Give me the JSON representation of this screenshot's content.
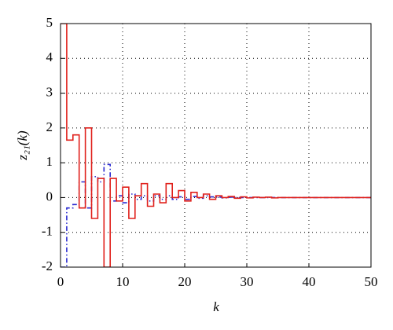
{
  "chart_data": {
    "type": "line",
    "drawstyle": "steps-post",
    "xlabel": "k",
    "ylabel": "z₂₁(k)",
    "x": [
      0,
      1,
      2,
      3,
      4,
      5,
      6,
      7,
      8,
      9,
      10,
      11,
      12,
      13,
      14,
      15,
      16,
      17,
      18,
      19,
      20,
      21,
      22,
      23,
      24,
      25,
      26,
      27,
      28,
      29,
      30,
      31,
      32,
      33,
      34,
      35,
      36,
      37,
      38,
      39,
      40,
      41,
      42,
      43,
      44,
      45,
      46,
      47,
      48,
      49,
      50
    ],
    "series": [
      {
        "color": "#2a2ad0",
        "dash": "6 3 1.5 3",
        "values": [
          -2,
          -0.3,
          -0.2,
          0.45,
          -0.3,
          0.6,
          0.45,
          0.95,
          -0.1,
          0.05,
          -0.15,
          0.1,
          -0.05,
          0.05,
          -0.1,
          0.05,
          -0.05,
          0.05,
          -0.05,
          0.02,
          -0.05,
          0.03,
          -0.02,
          0.05,
          0.02,
          0.01,
          -0.01,
          0.01,
          0,
          0,
          0,
          0,
          0,
          0,
          0,
          0,
          0,
          0,
          0,
          0,
          0,
          0,
          0,
          0,
          0,
          0,
          0,
          0,
          0,
          0,
          0
        ]
      },
      {
        "color": "#e0201b",
        "dash": "none",
        "values": [
          5,
          1.65,
          1.8,
          -0.3,
          2.0,
          -0.6,
          0.55,
          -2.0,
          0.55,
          -0.1,
          0.3,
          -0.6,
          0.05,
          0.4,
          -0.25,
          0.1,
          -0.15,
          0.4,
          0.0,
          0.2,
          -0.1,
          0.15,
          0,
          0.1,
          -0.05,
          0.05,
          0,
          0.03,
          -0.02,
          0.02,
          -0.01,
          0.01,
          0,
          0.01,
          -0.01,
          0,
          0,
          0,
          0,
          0,
          0,
          0,
          0,
          0,
          0,
          0,
          0,
          0,
          0,
          0,
          0
        ]
      }
    ],
    "xlim": [
      0,
      50
    ],
    "xticks": [
      0,
      10,
      20,
      30,
      40,
      50
    ],
    "ylim": [
      -2,
      5
    ],
    "yticks": [
      -2,
      -1,
      0,
      1,
      2,
      3,
      4,
      5
    ],
    "grid": true
  }
}
